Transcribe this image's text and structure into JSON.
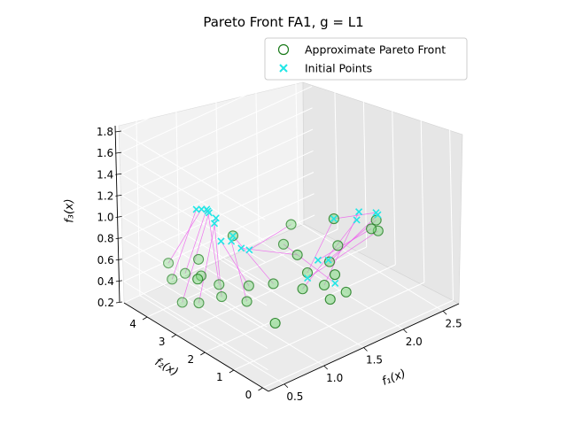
{
  "chart_data": {
    "type": "scatter3d",
    "title": "Pareto Front FA1, g = L1",
    "xlabel": "f₁(x)",
    "ylabel": "f₂(x)",
    "zlabel": "f₃(x)",
    "xlim": [
      0.3,
      2.7
    ],
    "ylim": [
      -0.2,
      4.8
    ],
    "zlim": [
      0.2,
      1.85
    ],
    "xticks": [
      "0.5",
      "1.0",
      "1.5",
      "2.0",
      "2.5"
    ],
    "yticks": [
      "0",
      "1",
      "2",
      "3",
      "4"
    ],
    "zticks": [
      "0.2",
      "0.4",
      "0.6",
      "0.8",
      "1.0",
      "1.2",
      "1.4",
      "1.6",
      "1.8"
    ],
    "legend": {
      "position": "top-right",
      "entries": [
        {
          "label": "Approximate Pareto Front",
          "marker": "open-circle",
          "color": "#1a7a1a"
        },
        {
          "label": "Initial Points",
          "marker": "x",
          "color": "#22e6e6"
        }
      ]
    },
    "colors": {
      "front": "#1a7a1a",
      "initial": "#22e6e6",
      "connector": "#ee55ee",
      "fill": "#7fd97f"
    },
    "series": [
      {
        "name": "Approximate Pareto Front",
        "points": [
          [
            0.55,
            3.8,
            0.5
          ],
          [
            0.65,
            4.2,
            0.55
          ],
          [
            0.75,
            3.9,
            0.47
          ],
          [
            0.85,
            3.0,
            0.48
          ],
          [
            0.6,
            3.6,
            0.3
          ],
          [
            0.7,
            3.3,
            0.31
          ],
          [
            0.95,
            3.2,
            0.3
          ],
          [
            1.05,
            2.6,
            0.32
          ],
          [
            1.15,
            2.8,
            0.4
          ],
          [
            1.35,
            2.5,
            0.4
          ],
          [
            1.55,
            2.2,
            0.65
          ],
          [
            1.8,
            3.1,
            0.7
          ],
          [
            1.6,
            2.0,
            0.5
          ],
          [
            1.5,
            1.9,
            0.4
          ],
          [
            1.7,
            1.7,
            0.4
          ],
          [
            1.95,
            2.2,
            0.45
          ],
          [
            2.05,
            2.3,
            0.8
          ],
          [
            2.6,
            2.3,
            0.5
          ],
          [
            2.65,
            2.5,
            0.55
          ],
          [
            2.55,
            2.4,
            0.52
          ],
          [
            1.7,
            3.1,
            0.55
          ],
          [
            0.6,
            3.0,
            0.8
          ],
          [
            0.45,
            2.5,
            0.78
          ],
          [
            0.3,
            2.2,
            0.85
          ],
          [
            0.9,
            1.2,
            0.4
          ],
          [
            1.7,
            1.5,
            0.3
          ],
          [
            1.9,
            1.5,
            0.3
          ],
          [
            1.0,
            2.9,
            0.9
          ],
          [
            1.8,
            1.6,
            0.48
          ],
          [
            2.2,
            2.6,
            0.45
          ]
        ]
      },
      {
        "name": "Initial Points",
        "points": [
          [
            0.3,
            2.2,
            1.5
          ],
          [
            0.4,
            2.3,
            1.45
          ],
          [
            0.5,
            2.4,
            1.4
          ],
          [
            0.55,
            2.5,
            1.35
          ],
          [
            0.6,
            2.6,
            1.3
          ],
          [
            0.65,
            2.5,
            1.25
          ],
          [
            0.7,
            2.7,
            1.15
          ],
          [
            0.8,
            2.4,
            1.0
          ],
          [
            0.85,
            2.9,
            0.9
          ],
          [
            1.0,
            2.9,
            0.9
          ],
          [
            1.1,
            2.9,
            0.75
          ],
          [
            1.2,
            2.9,
            0.7
          ],
          [
            2.05,
            2.3,
            0.8
          ],
          [
            2.3,
            2.2,
            0.72
          ],
          [
            2.4,
            2.4,
            0.73
          ],
          [
            2.6,
            2.3,
            0.65
          ],
          [
            2.65,
            2.5,
            0.62
          ],
          [
            1.6,
            2.0,
            0.45
          ],
          [
            1.9,
            2.1,
            0.5
          ],
          [
            1.7,
            1.9,
            0.6
          ],
          [
            1.8,
            1.6,
            0.4
          ]
        ]
      }
    ]
  }
}
